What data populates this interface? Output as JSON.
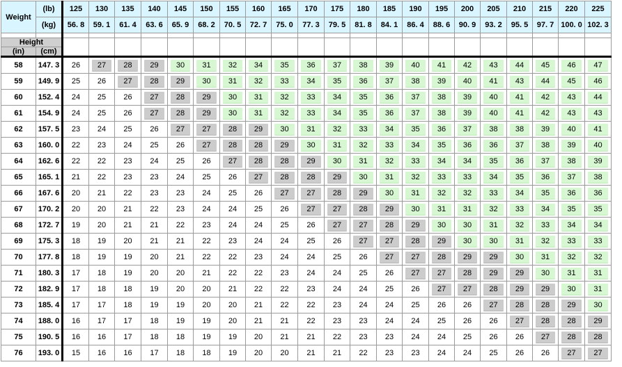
{
  "corner_label": "Weight",
  "lb_label": "(lb)",
  "kg_label": "(kg)",
  "height_label": "Height",
  "in_label": "(in)",
  "cm_label": "(cm)",
  "weights_lb": [
    "125",
    "130",
    "135",
    "140",
    "145",
    "150",
    "155",
    "160",
    "165",
    "170",
    "175",
    "180",
    "185",
    "190",
    "195",
    "200",
    "205",
    "210",
    "215",
    "220",
    "225"
  ],
  "weights_kg": [
    "56. 8",
    "59. 1",
    "61. 4",
    "63. 6",
    "65. 9",
    "68. 2",
    "70. 5",
    "72. 7",
    "75. 0",
    "77. 3",
    "79. 5",
    "81. 8",
    "84. 1",
    "86. 4",
    "88. 6",
    "90. 9",
    "93. 2",
    "95. 5",
    "97. 7",
    "100. 0",
    "102. 3"
  ],
  "colors": {
    "header_blue": "#d9f5ff",
    "overweight_gray": "#cccccc",
    "obese_green": "#d6f7d2",
    "height_header_gray": "#cfcfcf"
  },
  "rows": [
    {
      "in": "58",
      "cm": "147. 3",
      "v": [
        26,
        27,
        28,
        29,
        30,
        31,
        32,
        34,
        35,
        36,
        37,
        38,
        39,
        40,
        41,
        42,
        43,
        44,
        45,
        46,
        47
      ]
    },
    {
      "in": "59",
      "cm": "149. 9",
      "v": [
        25,
        26,
        27,
        28,
        29,
        30,
        31,
        32,
        33,
        34,
        35,
        36,
        37,
        38,
        39,
        40,
        41,
        43,
        44,
        45,
        46
      ]
    },
    {
      "in": "60",
      "cm": "152. 4",
      "v": [
        24,
        25,
        26,
        27,
        28,
        29,
        30,
        31,
        32,
        33,
        34,
        35,
        36,
        37,
        38,
        39,
        40,
        41,
        42,
        43,
        44
      ]
    },
    {
      "in": "61",
      "cm": "154. 9",
      "v": [
        24,
        25,
        26,
        27,
        28,
        29,
        30,
        31,
        32,
        33,
        34,
        35,
        36,
        37,
        38,
        39,
        40,
        41,
        42,
        43,
        43
      ]
    },
    {
      "in": "62",
      "cm": "157. 5",
      "v": [
        23,
        24,
        25,
        26,
        27,
        27,
        28,
        29,
        30,
        31,
        32,
        33,
        34,
        35,
        36,
        37,
        38,
        38,
        39,
        40,
        41
      ]
    },
    {
      "in": "63",
      "cm": "160. 0",
      "v": [
        22,
        23,
        24,
        25,
        26,
        27,
        28,
        28,
        29,
        30,
        31,
        32,
        33,
        34,
        35,
        36,
        36,
        37,
        38,
        39,
        40
      ]
    },
    {
      "in": "64",
      "cm": "162. 6",
      "v": [
        22,
        22,
        23,
        24,
        25,
        26,
        27,
        28,
        28,
        29,
        30,
        31,
        32,
        33,
        34,
        34,
        35,
        36,
        37,
        38,
        39
      ]
    },
    {
      "in": "65",
      "cm": "165. 1",
      "v": [
        21,
        22,
        23,
        23,
        24,
        25,
        26,
        27,
        28,
        28,
        29,
        30,
        31,
        32,
        33,
        33,
        34,
        35,
        36,
        37,
        38
      ]
    },
    {
      "in": "66",
      "cm": "167. 6",
      "v": [
        20,
        21,
        22,
        23,
        23,
        24,
        25,
        26,
        27,
        27,
        28,
        29,
        30,
        31,
        32,
        32,
        33,
        34,
        35,
        36,
        36
      ]
    },
    {
      "in": "67",
      "cm": "170. 2",
      "v": [
        20,
        20,
        21,
        22,
        23,
        24,
        24,
        25,
        26,
        27,
        27,
        28,
        29,
        30,
        31,
        31,
        32,
        33,
        34,
        35,
        35
      ]
    },
    {
      "in": "68",
      "cm": "172. 7",
      "v": [
        19,
        20,
        21,
        21,
        22,
        23,
        24,
        24,
        25,
        26,
        27,
        27,
        28,
        29,
        30,
        30,
        31,
        32,
        33,
        34,
        34
      ]
    },
    {
      "in": "69",
      "cm": "175. 3",
      "v": [
        18,
        19,
        20,
        21,
        21,
        22,
        23,
        24,
        24,
        25,
        26,
        27,
        27,
        28,
        29,
        30,
        30,
        31,
        32,
        33,
        33
      ]
    },
    {
      "in": "70",
      "cm": "177. 8",
      "v": [
        18,
        19,
        19,
        20,
        21,
        22,
        22,
        23,
        24,
        24,
        25,
        26,
        27,
        27,
        28,
        29,
        29,
        30,
        31,
        32,
        32
      ]
    },
    {
      "in": "71",
      "cm": "180. 3",
      "v": [
        17,
        18,
        19,
        20,
        20,
        21,
        22,
        22,
        23,
        24,
        24,
        25,
        26,
        27,
        27,
        28,
        29,
        29,
        30,
        31,
        31
      ]
    },
    {
      "in": "72",
      "cm": "182. 9",
      "v": [
        17,
        18,
        18,
        19,
        20,
        20,
        21,
        22,
        22,
        23,
        24,
        24,
        25,
        26,
        27,
        27,
        28,
        29,
        29,
        30,
        31
      ]
    },
    {
      "in": "73",
      "cm": "185. 4",
      "v": [
        17,
        17,
        18,
        19,
        19,
        20,
        20,
        21,
        22,
        22,
        23,
        24,
        24,
        25,
        26,
        26,
        27,
        28,
        28,
        29,
        30
      ]
    },
    {
      "in": "74",
      "cm": "188. 0",
      "v": [
        16,
        17,
        17,
        18,
        19,
        19,
        20,
        21,
        21,
        22,
        23,
        23,
        24,
        24,
        25,
        26,
        26,
        27,
        28,
        28,
        29
      ]
    },
    {
      "in": "75",
      "cm": "190. 5",
      "v": [
        16,
        16,
        17,
        18,
        18,
        19,
        19,
        20,
        21,
        21,
        22,
        23,
        23,
        24,
        24,
        25,
        26,
        26,
        27,
        28,
        28
      ]
    },
    {
      "in": "76",
      "cm": "193. 0",
      "v": [
        15,
        16,
        16,
        17,
        18,
        18,
        19,
        20,
        20,
        21,
        21,
        22,
        23,
        23,
        24,
        24,
        25,
        26,
        26,
        27,
        27
      ]
    }
  ]
}
